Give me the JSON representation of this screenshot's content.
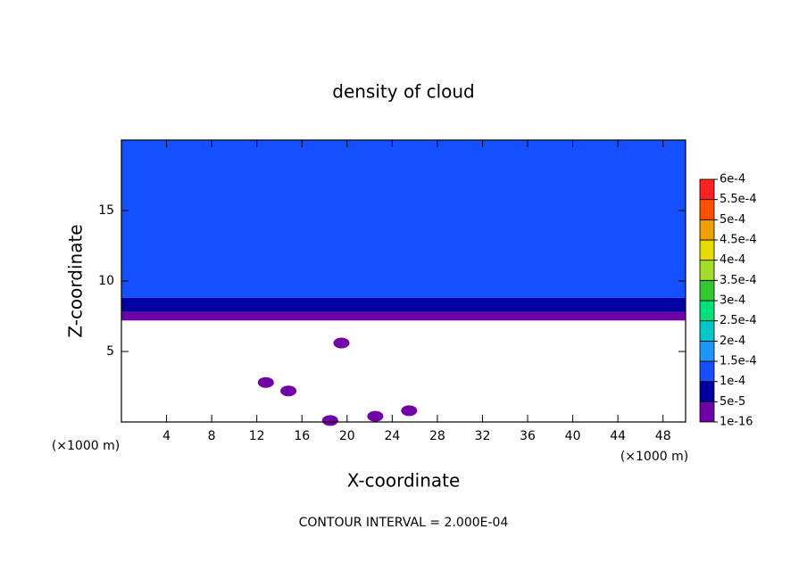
{
  "chart_data": {
    "type": "contour",
    "title": "density of cloud",
    "xlabel": "X-coordinate",
    "ylabel": "Z-coordinate",
    "x_unit_label": "(×1000 m)",
    "y_unit_label": "(×1000 m)",
    "footnote": "CONTOUR INTERVAL = 2.000E-04",
    "xlim": [
      0,
      50
    ],
    "ylim": [
      0,
      20
    ],
    "xticks": [
      4,
      8,
      12,
      16,
      20,
      24,
      28,
      32,
      36,
      40,
      44,
      48
    ],
    "yticks": [
      5,
      10,
      15
    ],
    "profile": {
      "z": [
        0,
        7.2,
        7.8,
        8.8,
        20
      ],
      "values": [
        0,
        3e-05,
        7e-05,
        0.00012
      ]
    },
    "patches": {
      "x": [
        12.8,
        14.8,
        25.5,
        22.5,
        19.5,
        18.5
      ],
      "z": [
        2.8,
        2.2,
        0.8,
        0.4,
        5.6,
        0.1
      ],
      "values": [
        3e-05,
        3e-05,
        3e-05,
        3e-05,
        3e-05,
        3e-05
      ]
    },
    "colorbar": {
      "ticks": [
        {
          "value": 1e-16,
          "label": "1e-16"
        },
        {
          "value": 5e-05,
          "label": "5e-5"
        },
        {
          "value": 0.0001,
          "label": "1e-4"
        },
        {
          "value": 0.00015,
          "label": "1.5e-4"
        },
        {
          "value": 0.0002,
          "label": "2e-4"
        },
        {
          "value": 0.00025,
          "label": "2.5e-4"
        },
        {
          "value": 0.0003,
          "label": "3e-4"
        },
        {
          "value": 0.00035,
          "label": "3.5e-4"
        },
        {
          "value": 0.0004,
          "label": "4e-4"
        },
        {
          "value": 0.00045,
          "label": "4.5e-4"
        },
        {
          "value": 0.0005,
          "label": "5e-4"
        },
        {
          "value": 0.00055,
          "label": "5.5e-4"
        },
        {
          "value": 0.0006,
          "label": "6e-4"
        }
      ],
      "colors": [
        "#7000a8",
        "#0000a0",
        "#1450ff",
        "#1e96ff",
        "#00c8c8",
        "#00e07a",
        "#32c832",
        "#a0dc28",
        "#e6dc00",
        "#f0a000",
        "#ff5000",
        "#ff2020"
      ]
    }
  }
}
